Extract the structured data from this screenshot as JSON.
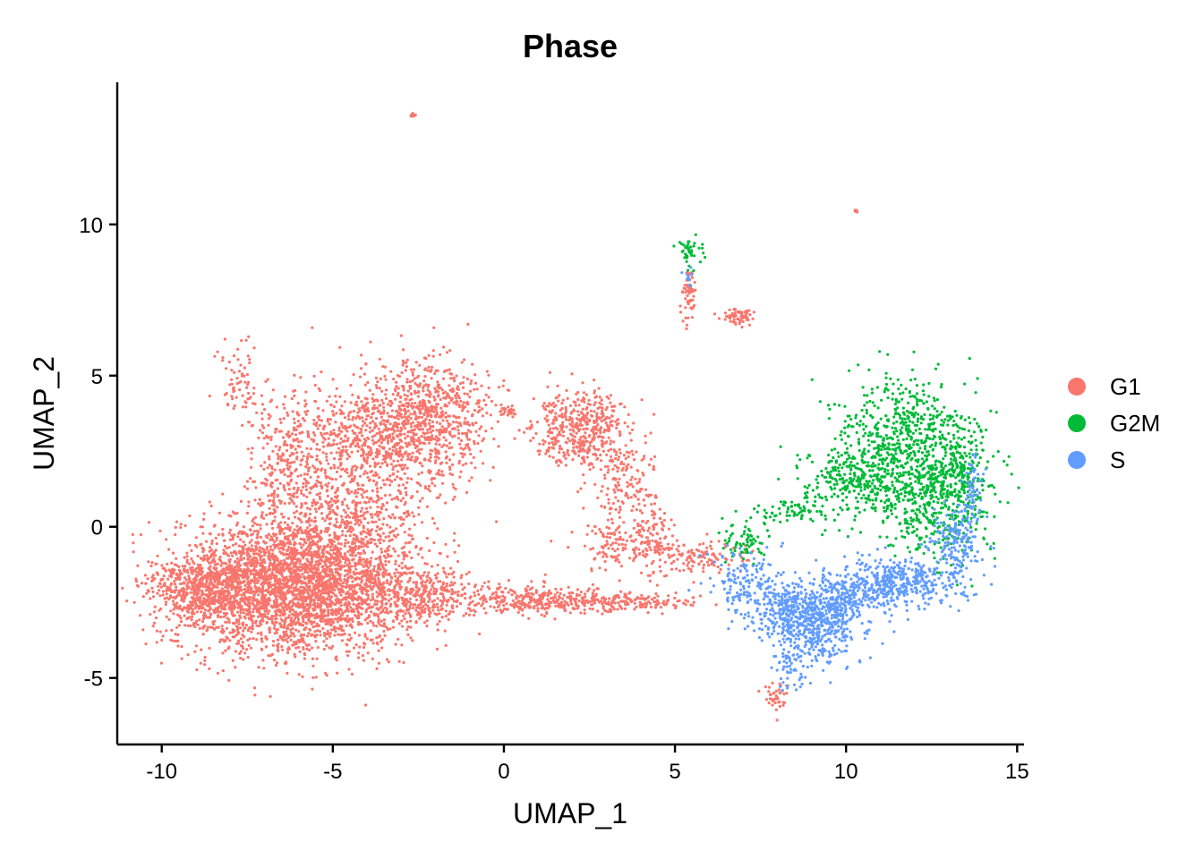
{
  "chart_data": {
    "type": "scatter",
    "title": "Phase",
    "xlabel": "UMAP_1",
    "ylabel": "UMAP_2",
    "xlim": [
      -11.3,
      15.2
    ],
    "ylim": [
      -7.2,
      14.7
    ],
    "xticks": [
      -10,
      -5,
      0,
      5,
      10,
      15
    ],
    "xtick_labels": [
      "-10",
      "-5",
      "0",
      "5",
      "10",
      "15"
    ],
    "yticks": [
      -5,
      0,
      5,
      10
    ],
    "ytick_labels": [
      "-5",
      "0",
      "5",
      "10"
    ],
    "grid": false,
    "legend_position": "right",
    "series": [
      {
        "name": "G1",
        "color": "#F8766D",
        "regions": [
          {
            "cx": -6.5,
            "cy": -2.0,
            "sx": 1.6,
            "sy": 1.1,
            "n": 2600
          },
          {
            "cx": -8.8,
            "cy": -2.0,
            "sx": 0.7,
            "sy": 0.55,
            "n": 500
          },
          {
            "cx": -4.5,
            "cy": -0.8,
            "sx": 1.2,
            "sy": 1.5,
            "n": 1100
          },
          {
            "cx": -4.0,
            "cy": 2.8,
            "sx": 1.2,
            "sy": 1.0,
            "n": 600
          },
          {
            "cx": -2.2,
            "cy": 3.6,
            "sx": 0.9,
            "sy": 1.0,
            "n": 700
          },
          {
            "cx": -6.5,
            "cy": 2.0,
            "sx": 0.6,
            "sy": 1.3,
            "n": 250
          },
          {
            "cx": -7.8,
            "cy": 4.8,
            "sx": 0.3,
            "sy": 0.6,
            "n": 60
          },
          {
            "cx": -2.5,
            "cy": -2.3,
            "sx": 1.0,
            "sy": 0.45,
            "n": 350
          },
          {
            "cx": 0.5,
            "cy": -2.4,
            "sx": 1.0,
            "sy": 0.25,
            "n": 220
          },
          {
            "cx": 3.0,
            "cy": -2.5,
            "sx": 1.3,
            "sy": 0.15,
            "n": 250
          },
          {
            "cx": 2.2,
            "cy": 3.3,
            "sx": 0.7,
            "sy": 0.6,
            "n": 450
          },
          {
            "cx": 3.5,
            "cy": 1.5,
            "sx": 0.5,
            "sy": 0.7,
            "n": 150
          },
          {
            "cx": 4.4,
            "cy": -0.5,
            "sx": 0.3,
            "sy": 0.5,
            "n": 120
          },
          {
            "cx": 5.8,
            "cy": -1.0,
            "sx": 0.6,
            "sy": 0.3,
            "n": 110
          },
          {
            "cx": 3.2,
            "cy": -0.6,
            "sx": 0.6,
            "sy": 0.4,
            "n": 110
          },
          {
            "cx": 0.1,
            "cy": 3.8,
            "sx": 0.15,
            "sy": 0.1,
            "n": 25
          },
          {
            "cx": 5.4,
            "cy": 7.7,
            "sx": 0.12,
            "sy": 0.4,
            "n": 60
          },
          {
            "cx": 6.9,
            "cy": 6.9,
            "sx": 0.25,
            "sy": 0.15,
            "n": 60
          },
          {
            "cx": -2.65,
            "cy": 13.6,
            "sx": 0.06,
            "sy": 0.05,
            "n": 12
          },
          {
            "cx": 10.3,
            "cy": 10.45,
            "sx": 0.04,
            "sy": 0.04,
            "n": 5
          },
          {
            "cx": 7.9,
            "cy": -5.7,
            "sx": 0.15,
            "sy": 0.3,
            "n": 40
          }
        ]
      },
      {
        "name": "G2M",
        "color": "#00BA38",
        "regions": [
          {
            "cx": 11.6,
            "cy": 3.0,
            "sx": 1.0,
            "sy": 1.0,
            "n": 550
          },
          {
            "cx": 12.5,
            "cy": 0.8,
            "sx": 0.9,
            "sy": 1.0,
            "n": 450
          },
          {
            "cx": 10.3,
            "cy": 1.5,
            "sx": 0.9,
            "sy": 0.6,
            "n": 300
          },
          {
            "cx": 13.3,
            "cy": 2.0,
            "sx": 0.35,
            "sy": 0.8,
            "n": 150
          },
          {
            "cx": 8.3,
            "cy": 0.5,
            "sx": 0.5,
            "sy": 0.2,
            "n": 60
          },
          {
            "cx": 7.0,
            "cy": -0.5,
            "sx": 0.4,
            "sy": 0.35,
            "n": 70
          },
          {
            "cx": 5.4,
            "cy": 9.15,
            "sx": 0.2,
            "sy": 0.25,
            "n": 40
          }
        ]
      },
      {
        "name": "S",
        "color": "#619CFF",
        "regions": [
          {
            "cx": 8.8,
            "cy": -2.8,
            "sx": 0.9,
            "sy": 0.45,
            "n": 500
          },
          {
            "cx": 9.2,
            "cy": -3.6,
            "sx": 0.5,
            "sy": 0.6,
            "n": 220
          },
          {
            "cx": 11.8,
            "cy": -1.8,
            "sx": 0.9,
            "sy": 0.4,
            "n": 350
          },
          {
            "cx": 13.2,
            "cy": -0.6,
            "sx": 0.4,
            "sy": 0.6,
            "n": 160
          },
          {
            "cx": 7.1,
            "cy": -1.8,
            "sx": 0.6,
            "sy": 0.5,
            "n": 150
          },
          {
            "cx": 10.4,
            "cy": -2.2,
            "sx": 0.7,
            "sy": 0.4,
            "n": 200
          },
          {
            "cx": 8.4,
            "cy": -4.5,
            "sx": 0.2,
            "sy": 0.5,
            "n": 60
          },
          {
            "cx": 13.7,
            "cy": 1.2,
            "sx": 0.15,
            "sy": 0.6,
            "n": 60
          },
          {
            "cx": 5.4,
            "cy": 8.3,
            "sx": 0.12,
            "sy": 0.15,
            "n": 10
          }
        ]
      }
    ]
  }
}
